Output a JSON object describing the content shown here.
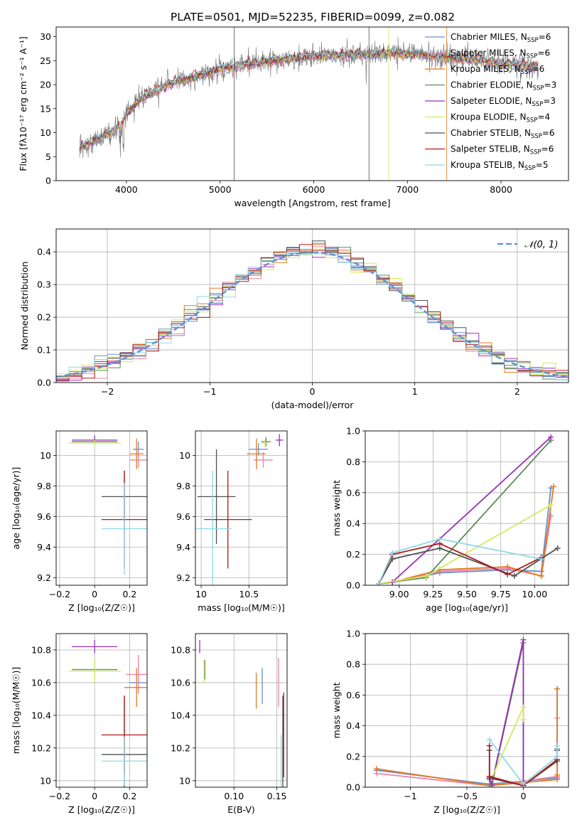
{
  "figure": {
    "title": "PLATE=0501, MJD=52235, FIBERID=0099, z=0.082"
  },
  "colors": {
    "chabrier_miles": "#6a8fc8",
    "salpeter_miles": "#ee82a8",
    "kroupa_miles": "#e07b20",
    "chabrier_elodie": "#5e8a5e",
    "salpeter_elodie": "#9932b8",
    "kroupa_elodie": "#d4ea5a",
    "chabrier_stelib": "#505050",
    "salpeter_stelib": "#b01818",
    "kroupa_stelib": "#8ed8e6",
    "gauss": "#5b8fd4"
  },
  "legend_models": [
    {
      "key": "chabrier_miles",
      "pre": "Chabrier MILES, N",
      "sub": "SSP",
      "post": "=6"
    },
    {
      "key": "salpeter_miles",
      "pre": "Salpeter MILES, N",
      "sub": "SSP",
      "post": "=6"
    },
    {
      "key": "kroupa_miles",
      "pre": "Kroupa MILES, N",
      "sub": "SSP",
      "post": "=6"
    },
    {
      "key": "chabrier_elodie",
      "pre": "Chabrier ELODIE, N",
      "sub": "SSP",
      "post": "=3"
    },
    {
      "key": "salpeter_elodie",
      "pre": "Salpeter ELODIE, N",
      "sub": "SSP",
      "post": "=3"
    },
    {
      "key": "kroupa_elodie",
      "pre": "Kroupa ELODIE, N",
      "sub": "SSP",
      "post": "=4"
    },
    {
      "key": "chabrier_stelib",
      "pre": "Chabrier STELIB, N",
      "sub": "SSP",
      "post": "=6"
    },
    {
      "key": "salpeter_stelib",
      "pre": "Salpeter STELIB, N",
      "sub": "SSP",
      "post": "=6"
    },
    {
      "key": "kroupa_stelib",
      "pre": "Kroupa STELIB, N",
      "sub": "SSP",
      "post": "=5"
    }
  ],
  "chart_data": [
    {
      "id": "spectrum",
      "type": "line",
      "xlabel": "wavelength [Angstrom, rest frame]",
      "ylabel": "Flux [fλ10⁻¹⁷ erg cm⁻² s⁻¹ A⁻¹]",
      "xlim": [
        3250,
        8720
      ],
      "ylim": [
        0,
        32
      ],
      "xticks": [
        4000,
        5000,
        6000,
        7000,
        8000
      ],
      "yticks": [
        0,
        5,
        10,
        15,
        20,
        25,
        30
      ],
      "grid": false,
      "legend": "upper-right",
      "continuum": {
        "x": [
          3500,
          3600,
          3700,
          3800,
          3900,
          3950,
          4000,
          4100,
          4200,
          4300,
          4400,
          4500,
          4600,
          4700,
          4800,
          4900,
          5000,
          5100,
          5200,
          5400,
          5600,
          5800,
          6000,
          6200,
          6400,
          6600,
          6800,
          7000,
          7200,
          7400,
          7600,
          7800,
          8000,
          8200,
          8400
        ],
        "y": [
          7,
          7.8,
          8.5,
          9.8,
          11,
          11.8,
          14,
          16,
          17.5,
          18.5,
          19.5,
          20.5,
          21,
          21.5,
          22,
          22.5,
          23.2,
          23.5,
          24,
          24.5,
          25,
          25.5,
          26,
          26,
          26.2,
          26.3,
          26.5,
          26.5,
          26.2,
          25.8,
          25.3,
          25,
          24.5,
          24,
          23.5
        ]
      }
    },
    {
      "id": "residuals",
      "type": "histogram",
      "xlabel": "(data-model)/error",
      "ylabel": "Normed distribution",
      "xlim": [
        -2.5,
        2.5
      ],
      "ylim": [
        0,
        0.47
      ],
      "xticks": [
        -2,
        -1,
        0,
        1,
        2
      ],
      "yticks": [
        0.0,
        0.1,
        0.2,
        0.3,
        0.4
      ],
      "grid": true,
      "legend": "upper-right",
      "gauss_label": "𝒩(0, 1)",
      "bin_width": 0.125
    },
    {
      "id": "age_vs_Z",
      "type": "errorbar",
      "xlabel": "Z [log₁₀(Z/Z☉)]",
      "ylabel": "age  [log₁₀(age/yr)]",
      "xlim": [
        -0.22,
        0.3
      ],
      "ylim": [
        9.15,
        10.16
      ],
      "xticks": [
        -0.2,
        0.0,
        0.2
      ],
      "yticks": [
        9.2,
        9.4,
        9.6,
        9.8,
        10.0
      ],
      "grid": true,
      "points": [
        {
          "key": "chabrier_miles",
          "x": 0.25,
          "xerr": 0.03,
          "y": 10.04,
          "yerr": 0.05
        },
        {
          "key": "salpeter_miles",
          "x": 0.25,
          "xerr": 0.05,
          "y": 9.97,
          "yerr": 0.05
        },
        {
          "key": "kroupa_miles",
          "x": 0.24,
          "xerr": 0.04,
          "y": 10.01,
          "yerr": 0.1
        },
        {
          "key": "chabrier_elodie",
          "x": 0.0,
          "xerr": 0.13,
          "y": 10.09,
          "yerr": 0.02
        },
        {
          "key": "salpeter_elodie",
          "x": 0.0,
          "xerr": 0.13,
          "y": 10.1,
          "yerr": 0.03
        },
        {
          "key": "kroupa_elodie",
          "x": 0.0,
          "xerr": 0.15,
          "y": 10.08,
          "yerr": 0.02
        },
        {
          "key": "chabrier_stelib",
          "x": 0.17,
          "xerr": 0.13,
          "y": 9.73,
          "yerr": 0.17
        },
        {
          "key": "salpeter_stelib",
          "x": 0.17,
          "xerr": 0.13,
          "y": 9.58,
          "yerr": 0.32
        },
        {
          "key": "kroupa_stelib",
          "x": 0.17,
          "xerr": 0.13,
          "y": 9.52,
          "yerr": 0.3
        }
      ]
    },
    {
      "id": "age_vs_mass",
      "type": "errorbar",
      "xlabel": "mass [log₁₀(M/M☉)]",
      "ylabel": "",
      "xlim": [
        9.94,
        10.9
      ],
      "ylim": [
        9.15,
        10.16
      ],
      "xticks": [
        10.0,
        10.5
      ],
      "yticks": [
        9.2,
        9.4,
        9.6,
        9.8,
        10.0
      ],
      "grid": true,
      "points": [
        {
          "key": "chabrier_miles",
          "x": 10.6,
          "xerr": 0.1,
          "y": 10.04,
          "yerr": 0.04
        },
        {
          "key": "salpeter_miles",
          "x": 10.65,
          "xerr": 0.1,
          "y": 9.97,
          "yerr": 0.05
        },
        {
          "key": "kroupa_miles",
          "x": 10.58,
          "xerr": 0.1,
          "y": 10.01,
          "yerr": 0.1
        },
        {
          "key": "chabrier_elodie",
          "x": 10.68,
          "xerr": 0.05,
          "y": 10.09,
          "yerr": 0.03
        },
        {
          "key": "salpeter_elodie",
          "x": 10.82,
          "xerr": 0.04,
          "y": 10.1,
          "yerr": 0.04
        },
        {
          "key": "kroupa_elodie",
          "x": 10.67,
          "xerr": 0.04,
          "y": 10.08,
          "yerr": 0.03
        },
        {
          "key": "chabrier_stelib",
          "x": 10.16,
          "xerr": 0.2,
          "y": 9.73,
          "yerr": 0.31
        },
        {
          "key": "salpeter_stelib",
          "x": 10.28,
          "xerr": 0.25,
          "y": 9.58,
          "yerr": 0.32
        },
        {
          "key": "kroupa_stelib",
          "x": 10.12,
          "xerr": 0.2,
          "y": 9.52,
          "yerr": 0.38
        }
      ]
    },
    {
      "id": "weight_vs_age",
      "type": "line",
      "xlabel": "age  [log₁₀(age/yr)]",
      "ylabel": "mass weight",
      "xlim": [
        8.75,
        10.25
      ],
      "ylim": [
        0,
        1.0
      ],
      "xticks": [
        9.0,
        9.5,
        10.0
      ],
      "xticklabels": [
        "9.00",
        "9.25",
        "9.50",
        "9.75",
        "10.00"
      ],
      "xtickvals": [
        9.0,
        9.25,
        9.5,
        9.75,
        10.0
      ],
      "yticks": [
        0.0,
        0.2,
        0.4,
        0.6,
        0.8,
        1.0
      ],
      "grid": true,
      "series": [
        {
          "key": "chabrier_miles",
          "x": [
            8.85,
            8.95,
            9.3,
            9.8,
            10.05,
            10.12
          ],
          "y": [
            0.01,
            0.02,
            0.08,
            0.1,
            0.09,
            0.63
          ]
        },
        {
          "key": "salpeter_miles",
          "x": [
            8.85,
            8.95,
            9.3,
            9.8,
            10.05,
            10.12
          ],
          "y": [
            0.01,
            0.02,
            0.09,
            0.11,
            0.06,
            0.45
          ]
        },
        {
          "key": "kroupa_miles",
          "x": [
            8.85,
            8.95,
            9.3,
            9.8,
            10.05,
            10.14
          ],
          "y": [
            0.01,
            0.02,
            0.1,
            0.12,
            0.06,
            0.64
          ]
        },
        {
          "key": "chabrier_elodie",
          "x": [
            8.85,
            9.2,
            10.12
          ],
          "y": [
            0.01,
            0.05,
            0.94
          ]
        },
        {
          "key": "salpeter_elodie",
          "x": [
            8.85,
            8.95,
            10.12
          ],
          "y": [
            0.01,
            0.02,
            0.96
          ]
        },
        {
          "key": "kroupa_elodie",
          "x": [
            8.85,
            9.2,
            10.12
          ],
          "y": [
            0.01,
            0.06,
            0.52
          ]
        },
        {
          "key": "chabrier_stelib",
          "x": [
            8.85,
            8.95,
            9.3,
            9.85,
            10.17
          ],
          "y": [
            0.01,
            0.17,
            0.24,
            0.06,
            0.24
          ]
        },
        {
          "key": "salpeter_stelib",
          "x": [
            8.85,
            8.95,
            9.3,
            9.8,
            10.05
          ],
          "y": [
            0.01,
            0.2,
            0.27,
            0.07,
            0.18
          ]
        },
        {
          "key": "kroupa_stelib",
          "x": [
            8.85,
            8.95,
            9.3,
            10.05
          ],
          "y": [
            0.01,
            0.21,
            0.3,
            0.17
          ]
        }
      ]
    },
    {
      "id": "mass_vs_Z",
      "type": "errorbar",
      "xlabel": "Z [log₁₀(Z/Z☉)]",
      "ylabel": "mass [log₁₀(M/M☉)]",
      "xlim": [
        -0.22,
        0.3
      ],
      "ylim": [
        9.96,
        10.9
      ],
      "xticks": [
        -0.2,
        0.0,
        0.2
      ],
      "yticks": [
        10.0,
        10.2,
        10.4,
        10.6,
        10.8
      ],
      "grid": true,
      "points": [
        {
          "key": "chabrier_miles",
          "x": 0.25,
          "xerr": 0.05,
          "y": 10.6,
          "yerr": 0.05
        },
        {
          "key": "salpeter_miles",
          "x": 0.25,
          "xerr": 0.07,
          "y": 10.65,
          "yerr": 0.12
        },
        {
          "key": "kroupa_miles",
          "x": 0.24,
          "xerr": 0.07,
          "y": 10.57,
          "yerr": 0.12
        },
        {
          "key": "chabrier_elodie",
          "x": 0.0,
          "xerr": 0.13,
          "y": 10.68,
          "yerr": 0.06
        },
        {
          "key": "salpeter_elodie",
          "x": 0.0,
          "xerr": 0.13,
          "y": 10.82,
          "yerr": 0.04
        },
        {
          "key": "kroupa_elodie",
          "x": 0.0,
          "xerr": 0.15,
          "y": 10.67,
          "yerr": 0.07
        },
        {
          "key": "chabrier_stelib",
          "x": 0.17,
          "xerr": 0.13,
          "y": 10.16,
          "yerr": 0.36
        },
        {
          "key": "salpeter_stelib",
          "x": 0.17,
          "xerr": 0.13,
          "y": 10.28,
          "yerr": 0.24
        },
        {
          "key": "kroupa_stelib",
          "x": 0.17,
          "xerr": 0.13,
          "y": 10.12,
          "yerr": 0.15
        }
      ]
    },
    {
      "id": "mass_vs_ebv",
      "type": "errorbar",
      "xlabel": "E(B-V)",
      "ylabel": "",
      "xlim": [
        0.055,
        0.162
      ],
      "ylim": [
        9.96,
        10.9
      ],
      "xticks": [
        0.1,
        0.15
      ],
      "xticklabels": [
        "0.10",
        "0.15"
      ],
      "yticks": [
        10.0,
        10.2,
        10.4,
        10.6,
        10.8
      ],
      "grid": true,
      "points": [
        {
          "key": "chabrier_miles",
          "x": 0.133,
          "xerr": 0.0,
          "y": 10.58,
          "yerr": 0.11
        },
        {
          "key": "salpeter_miles",
          "x": 0.152,
          "xerr": 0.0,
          "y": 10.6,
          "yerr": 0.15
        },
        {
          "key": "kroupa_miles",
          "x": 0.126,
          "xerr": 0.0,
          "y": 10.55,
          "yerr": 0.11
        },
        {
          "key": "chabrier_elodie",
          "x": 0.066,
          "xerr": 0.0,
          "y": 10.68,
          "yerr": 0.06
        },
        {
          "key": "salpeter_elodie",
          "x": 0.06,
          "xerr": 0.0,
          "y": 10.82,
          "yerr": 0.04
        },
        {
          "key": "kroupa_elodie",
          "x": 0.065,
          "xerr": 0.0,
          "y": 10.67,
          "yerr": 0.07
        },
        {
          "key": "chabrier_stelib",
          "x": 0.157,
          "xerr": 0.0,
          "y": 10.16,
          "yerr": 0.36
        },
        {
          "key": "salpeter_stelib",
          "x": 0.158,
          "xerr": 0.0,
          "y": 10.28,
          "yerr": 0.26
        },
        {
          "key": "kroupa_stelib",
          "x": 0.155,
          "xerr": 0.0,
          "y": 10.12,
          "yerr": 0.16
        }
      ]
    },
    {
      "id": "weight_vs_Z",
      "type": "line",
      "xlabel": "Z [log₁₀(Z/Z☉)]",
      "ylabel": "mass weight",
      "xlim": [
        -1.4,
        0.4
      ],
      "ylim": [
        0,
        1.0
      ],
      "xticks": [
        -1.0,
        -0.5,
        0.0
      ],
      "yticks": [
        0.0,
        0.2,
        0.4,
        0.6,
        0.8,
        1.0
      ],
      "grid": true,
      "series": [
        {
          "key": "chabrier_miles",
          "x": [
            -1.3,
            -0.3,
            0.0,
            0.3,
            0.3,
            0.3
          ],
          "y": [
            0.11,
            0.02,
            0.04,
            0.06,
            0.25,
            0.64
          ]
        },
        {
          "key": "salpeter_miles",
          "x": [
            -1.3,
            -0.3,
            0.0,
            0.3,
            0.3
          ],
          "y": [
            0.09,
            0.01,
            0.04,
            0.07,
            0.45
          ]
        },
        {
          "key": "kroupa_miles",
          "x": [
            -1.3,
            -0.3,
            0.0,
            0.3,
            0.3,
            0.3
          ],
          "y": [
            0.12,
            0.01,
            0.03,
            0.05,
            0.08,
            0.64
          ]
        },
        {
          "key": "chabrier_elodie",
          "x": [
            -0.3,
            -0.28,
            0.0,
            0.0
          ],
          "y": [
            0.05,
            0.01,
            0.94,
            0.02
          ]
        },
        {
          "key": "salpeter_elodie",
          "x": [
            -0.3,
            -0.28,
            0.0,
            0.0
          ],
          "y": [
            0.06,
            0.02,
            0.96,
            0.02
          ]
        },
        {
          "key": "kroupa_elodie",
          "x": [
            -0.28,
            0.0,
            0.0
          ],
          "y": [
            0.06,
            0.52,
            0.44
          ]
        },
        {
          "key": "chabrier_stelib",
          "x": [
            -0.3,
            -0.3,
            0.0,
            0.3,
            0.3
          ],
          "y": [
            0.24,
            0.06,
            0.01,
            0.17,
            0.24
          ]
        },
        {
          "key": "salpeter_stelib",
          "x": [
            -0.3,
            -0.3,
            0.0,
            0.3,
            0.3
          ],
          "y": [
            0.27,
            0.07,
            0.01,
            0.18,
            0.2
          ]
        },
        {
          "key": "kroupa_stelib",
          "x": [
            -0.3,
            0.0,
            0.3,
            0.3
          ],
          "y": [
            0.31,
            0.02,
            0.2,
            0.27
          ]
        }
      ]
    }
  ]
}
